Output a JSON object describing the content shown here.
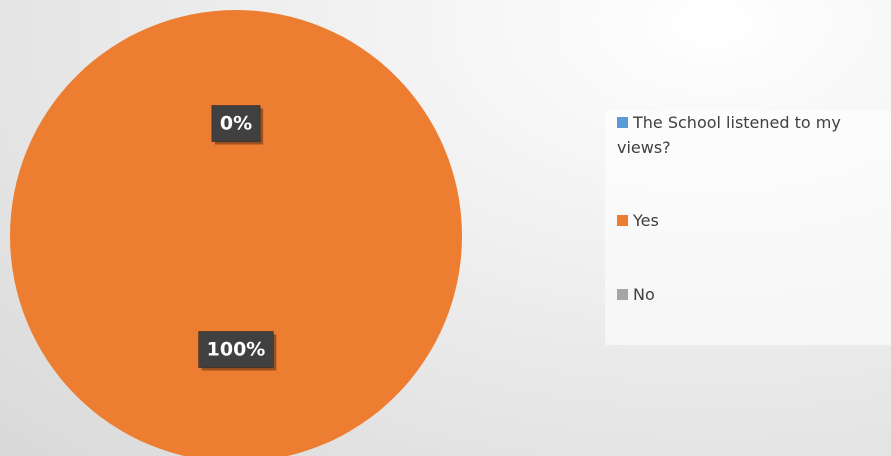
{
  "chart_data": {
    "type": "pie",
    "categories": [
      "The School listened to my views?",
      "Yes",
      "No"
    ],
    "values": [
      null,
      100,
      0
    ],
    "value_labels": [
      null,
      "100%",
      "0%"
    ],
    "colors": [
      "#5b9bd5",
      "#ed7d31",
      "#a5a5a5"
    ],
    "legend": "right"
  }
}
